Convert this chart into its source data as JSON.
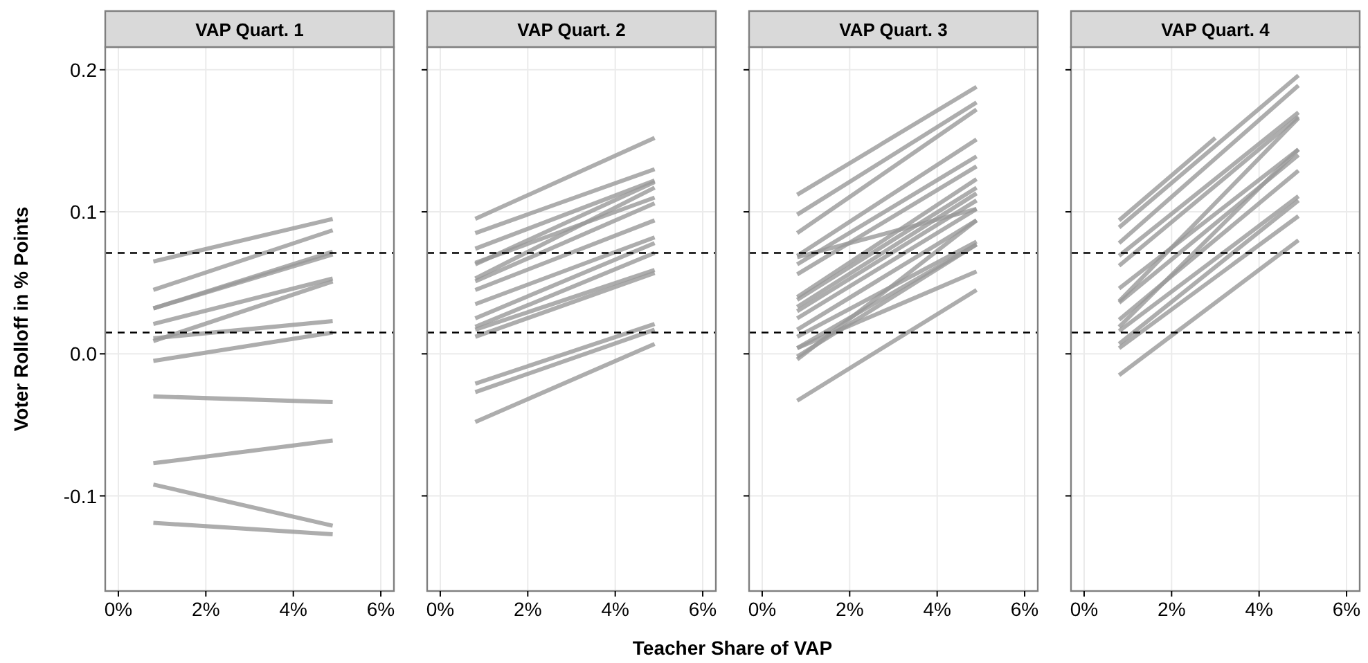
{
  "chart_data": [
    {
      "type": "line",
      "title": "VAP Quart. 1",
      "ylabel": "Voter Rolloff in % Points",
      "xlim": [
        -0.3,
        6.3
      ],
      "ylim": [
        -0.167,
        0.216
      ],
      "xticks": [
        {
          "value": 0,
          "label": "0%"
        },
        {
          "value": 2,
          "label": "2%"
        },
        {
          "value": 4,
          "label": "4%"
        },
        {
          "value": 6,
          "label": "6%"
        }
      ],
      "yticks": [
        {
          "value": -0.1,
          "label": "-0.1"
        },
        {
          "value": 0,
          "label": "0.0"
        },
        {
          "value": 0.1,
          "label": "0.1"
        },
        {
          "value": 0.2,
          "label": "0.2"
        }
      ],
      "grid": true,
      "line_style": "solid",
      "ref_lines": [
        {
          "axis": "y",
          "value": 0.071,
          "color": "#000000",
          "line_style": "dashed"
        },
        {
          "axis": "y",
          "value": 0.015,
          "color": "#000000",
          "line_style": "dashed"
        }
      ],
      "series": [
        {
          "color": "#999999",
          "x": [
            0.8,
            4.9
          ],
          "values": [
            0.065,
            0.095
          ]
        },
        {
          "color": "#999999",
          "x": [
            0.8,
            4.9
          ],
          "values": [
            0.045,
            0.087
          ]
        },
        {
          "color": "#999999",
          "x": [
            0.8,
            4.9
          ],
          "values": [
            0.032,
            0.072
          ]
        },
        {
          "color": "#999999",
          "x": [
            0.8,
            4.9
          ],
          "values": [
            0.032,
            0.07
          ]
        },
        {
          "color": "#999999",
          "x": [
            0.8,
            4.9
          ],
          "values": [
            0.021,
            0.053
          ]
        },
        {
          "color": "#999999",
          "x": [
            0.8,
            4.9
          ],
          "values": [
            0.009,
            0.051
          ]
        },
        {
          "color": "#999999",
          "x": [
            0.8,
            4.9
          ],
          "values": [
            0.011,
            0.023
          ]
        },
        {
          "color": "#999999",
          "x": [
            0.8,
            4.9
          ],
          "values": [
            -0.005,
            0.015
          ]
        },
        {
          "color": "#999999",
          "x": [
            0.8,
            4.9
          ],
          "values": [
            -0.03,
            -0.034
          ]
        },
        {
          "color": "#999999",
          "x": [
            0.8,
            4.9
          ],
          "values": [
            -0.077,
            -0.061
          ]
        },
        {
          "color": "#999999",
          "x": [
            0.8,
            4.9
          ],
          "values": [
            -0.092,
            -0.121
          ]
        },
        {
          "color": "#999999",
          "x": [
            0.8,
            4.9
          ],
          "values": [
            -0.119,
            -0.127
          ]
        }
      ]
    },
    {
      "type": "line",
      "title": "VAP Quart. 2",
      "xlabel": "Teacher Share of VAP",
      "xlim": [
        -0.3,
        6.3
      ],
      "ylim": [
        -0.167,
        0.216
      ],
      "xticks": [
        {
          "value": 0,
          "label": "0%"
        },
        {
          "value": 2,
          "label": "2%"
        },
        {
          "value": 4,
          "label": "4%"
        },
        {
          "value": 6,
          "label": "6%"
        }
      ],
      "yticks": [
        {
          "value": -0.1,
          "label": null
        },
        {
          "value": 0,
          "label": null
        },
        {
          "value": 0.1,
          "label": null
        },
        {
          "value": 0.2,
          "label": null
        }
      ],
      "tick_labels": "x",
      "grid": true,
      "line_style": "solid",
      "ref_lines": [
        {
          "axis": "y",
          "value": 0.071,
          "color": "#000000",
          "line_style": "dashed"
        },
        {
          "axis": "y",
          "value": 0.015,
          "color": "#000000",
          "line_style": "dashed"
        }
      ],
      "series": [
        {
          "color": "#999999",
          "x": [
            0.8,
            4.9
          ],
          "values": [
            0.095,
            0.152
          ]
        },
        {
          "color": "#999999",
          "x": [
            0.8,
            4.9
          ],
          "values": [
            0.085,
            0.13
          ]
        },
        {
          "color": "#999999",
          "x": [
            0.8,
            4.9
          ],
          "values": [
            0.074,
            0.122
          ]
        },
        {
          "color": "#999999",
          "x": [
            0.8,
            4.9
          ],
          "values": [
            0.064,
            0.11
          ]
        },
        {
          "color": "#999999",
          "x": [
            0.8,
            4.9
          ],
          "values": [
            0.063,
            0.121
          ]
        },
        {
          "color": "#999999",
          "x": [
            0.8,
            4.9
          ],
          "values": [
            0.053,
            0.117
          ]
        },
        {
          "color": "#999999",
          "x": [
            0.8,
            4.9
          ],
          "values": [
            0.051,
            0.106
          ]
        },
        {
          "color": "#999999",
          "x": [
            0.8,
            4.9
          ],
          "values": [
            0.045,
            0.094
          ]
        },
        {
          "color": "#999999",
          "x": [
            0.8,
            4.9
          ],
          "values": [
            0.035,
            0.082
          ]
        },
        {
          "color": "#999999",
          "x": [
            0.8,
            4.9
          ],
          "values": [
            0.025,
            0.078
          ]
        },
        {
          "color": "#999999",
          "x": [
            0.8,
            4.9
          ],
          "values": [
            0.019,
            0.071
          ]
        },
        {
          "color": "#999999",
          "x": [
            0.8,
            4.9
          ],
          "values": [
            0.017,
            0.059
          ]
        },
        {
          "color": "#999999",
          "x": [
            0.8,
            4.9
          ],
          "values": [
            0.012,
            0.057
          ]
        },
        {
          "color": "#999999",
          "x": [
            0.8,
            4.9
          ],
          "values": [
            -0.021,
            0.021
          ]
        },
        {
          "color": "#999999",
          "x": [
            0.8,
            4.9
          ],
          "values": [
            -0.027,
            0.017
          ]
        },
        {
          "color": "#999999",
          "x": [
            0.8,
            4.9
          ],
          "values": [
            -0.048,
            0.007
          ]
        }
      ]
    },
    {
      "type": "line",
      "title": "VAP Quart. 3",
      "xlim": [
        -0.3,
        6.3
      ],
      "ylim": [
        -0.167,
        0.216
      ],
      "xticks": [
        {
          "value": 0,
          "label": "0%"
        },
        {
          "value": 2,
          "label": "2%"
        },
        {
          "value": 4,
          "label": "4%"
        },
        {
          "value": 6,
          "label": "6%"
        }
      ],
      "yticks": [
        {
          "value": -0.1,
          "label": null
        },
        {
          "value": 0,
          "label": null
        },
        {
          "value": 0.1,
          "label": null
        },
        {
          "value": 0.2,
          "label": null
        }
      ],
      "tick_labels": "x",
      "grid": true,
      "line_style": "solid",
      "ref_lines": [
        {
          "axis": "y",
          "value": 0.071,
          "color": "#000000",
          "line_style": "dashed"
        },
        {
          "axis": "y",
          "value": 0.015,
          "color": "#000000",
          "line_style": "dashed"
        }
      ],
      "series": [
        {
          "color": "#999999",
          "x": [
            0.8,
            4.9
          ],
          "values": [
            0.112,
            0.188
          ]
        },
        {
          "color": "#999999",
          "x": [
            0.8,
            4.9
          ],
          "values": [
            0.098,
            0.177
          ]
        },
        {
          "color": "#999999",
          "x": [
            0.8,
            4.9
          ],
          "values": [
            0.085,
            0.172
          ]
        },
        {
          "color": "#999999",
          "x": [
            0.8,
            4.9
          ],
          "values": [
            0.069,
            0.151
          ]
        },
        {
          "color": "#999999",
          "x": [
            0.8,
            4.9
          ],
          "values": [
            0.063,
            0.139
          ]
        },
        {
          "color": "#999999",
          "x": [
            0.8,
            4.9
          ],
          "values": [
            0.056,
            0.132
          ]
        },
        {
          "color": "#999999",
          "x": [
            0.8,
            4.9
          ],
          "values": [
            0.068,
            0.102
          ]
        },
        {
          "color": "#999999",
          "x": [
            0.8,
            4.9
          ],
          "values": [
            0.04,
            0.123
          ]
        },
        {
          "color": "#999999",
          "x": [
            0.8,
            4.9
          ],
          "values": [
            0.038,
            0.117
          ]
        },
        {
          "color": "#999999",
          "x": [
            0.8,
            4.9
          ],
          "values": [
            0.033,
            0.113
          ]
        },
        {
          "color": "#999999",
          "x": [
            0.8,
            4.9
          ],
          "values": [
            0.03,
            0.108
          ]
        },
        {
          "color": "#999999",
          "x": [
            0.8,
            4.9
          ],
          "values": [
            0.025,
            0.102
          ]
        },
        {
          "color": "#999999",
          "x": [
            0.8,
            4.9
          ],
          "values": [
            0.017,
            0.094
          ]
        },
        {
          "color": "#999999",
          "x": [
            0.8,
            4.9
          ],
          "values": [
            0.012,
            0.079
          ]
        },
        {
          "color": "#999999",
          "x": [
            0.8,
            4.9
          ],
          "values": [
            0.004,
            0.077
          ]
        },
        {
          "color": "#999999",
          "x": [
            0.8,
            4.9
          ],
          "values": [
            -0.004,
            0.094
          ]
        },
        {
          "color": "#999999",
          "x": [
            0.8,
            4.9
          ],
          "values": [
            -0.002,
            0.077
          ]
        },
        {
          "color": "#999999",
          "x": [
            0.8,
            4.9
          ],
          "values": [
            0.004,
            0.058
          ]
        },
        {
          "color": "#999999",
          "x": [
            0.8,
            4.9
          ],
          "values": [
            -0.033,
            0.045
          ]
        }
      ]
    },
    {
      "type": "line",
      "title": "VAP Quart. 4",
      "xlim": [
        -0.3,
        6.3
      ],
      "ylim": [
        -0.167,
        0.216
      ],
      "xticks": [
        {
          "value": 0,
          "label": "0%"
        },
        {
          "value": 2,
          "label": "2%"
        },
        {
          "value": 4,
          "label": "4%"
        },
        {
          "value": 6,
          "label": "6%"
        }
      ],
      "yticks": [
        {
          "value": -0.1,
          "label": null
        },
        {
          "value": 0,
          "label": null
        },
        {
          "value": 0.1,
          "label": null
        },
        {
          "value": 0.2,
          "label": null
        }
      ],
      "tick_labels": "x",
      "grid": true,
      "line_style": "solid",
      "ref_lines": [
        {
          "axis": "y",
          "value": 0.071,
          "color": "#000000",
          "line_style": "dashed"
        },
        {
          "axis": "y",
          "value": 0.015,
          "color": "#000000",
          "line_style": "dashed"
        }
      ],
      "series": [
        {
          "color": "#999999",
          "x": [
            0.8,
            3.0
          ],
          "values": [
            0.094,
            0.152
          ]
        },
        {
          "color": "#999999",
          "x": [
            0.8,
            4.9
          ],
          "values": [
            0.089,
            0.196
          ]
        },
        {
          "color": "#999999",
          "x": [
            0.8,
            4.9
          ],
          "values": [
            0.078,
            0.189
          ]
        },
        {
          "color": "#999999",
          "x": [
            0.8,
            4.9
          ],
          "values": [
            0.069,
            0.17
          ]
        },
        {
          "color": "#999999",
          "x": [
            0.8,
            4.9
          ],
          "values": [
            0.062,
            0.167
          ]
        },
        {
          "color": "#999999",
          "x": [
            0.8,
            4.9
          ],
          "values": [
            0.046,
            0.144
          ]
        },
        {
          "color": "#999999",
          "x": [
            0.8,
            4.9
          ],
          "values": [
            0.037,
            0.166
          ]
        },
        {
          "color": "#999999",
          "x": [
            0.8,
            4.9
          ],
          "values": [
            0.036,
            0.14
          ]
        },
        {
          "color": "#999999",
          "x": [
            0.8,
            4.9
          ],
          "values": [
            0.024,
            0.129
          ]
        },
        {
          "color": "#999999",
          "x": [
            0.8,
            4.9
          ],
          "values": [
            0.019,
            0.144
          ]
        },
        {
          "color": "#999999",
          "x": [
            0.8,
            4.9
          ],
          "values": [
            0.016,
            0.111
          ]
        },
        {
          "color": "#999999",
          "x": [
            0.8,
            4.9
          ],
          "values": [
            0.007,
            0.108
          ]
        },
        {
          "color": "#999999",
          "x": [
            0.8,
            4.9
          ],
          "values": [
            0.004,
            0.097
          ]
        },
        {
          "color": "#999999",
          "x": [
            0.8,
            4.9
          ],
          "values": [
            -0.015,
            0.08
          ]
        }
      ]
    }
  ]
}
